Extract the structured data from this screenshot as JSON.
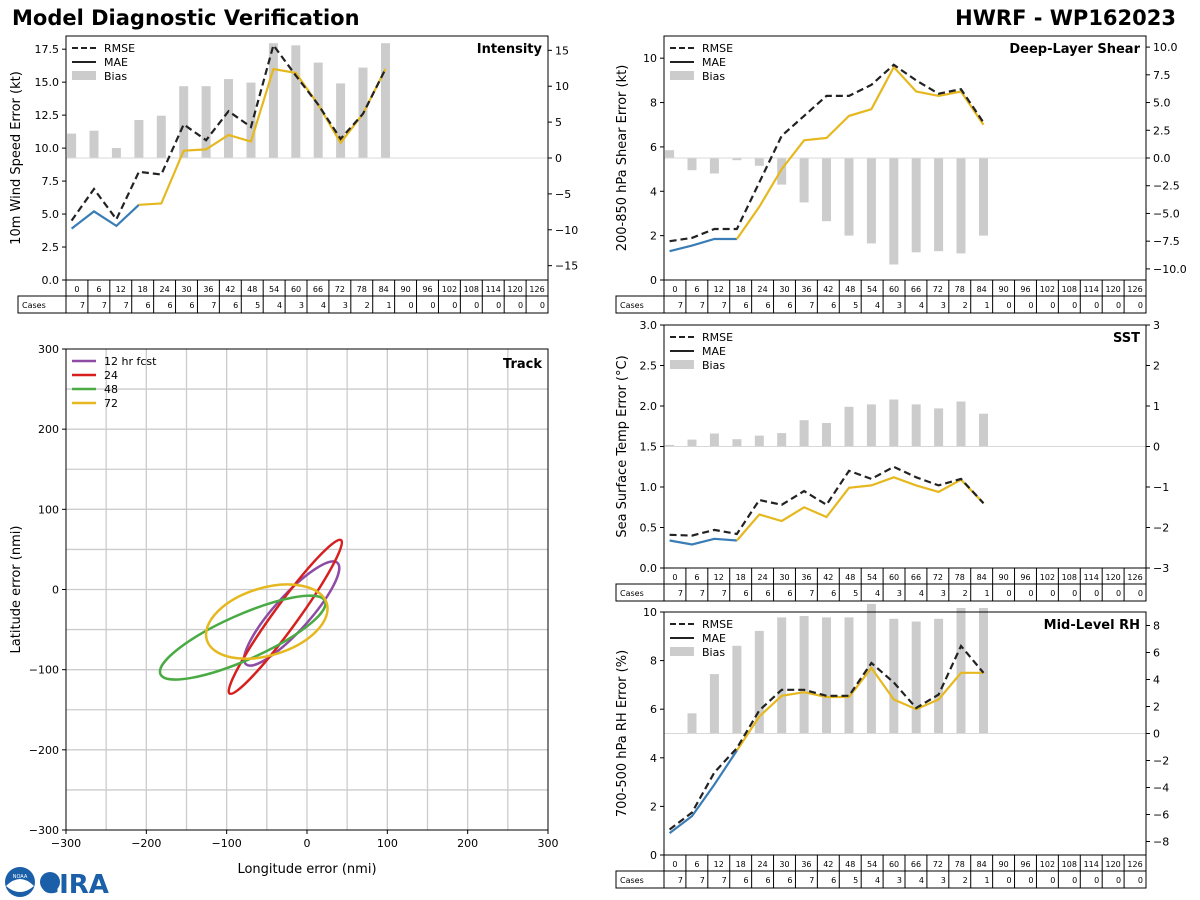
{
  "header": {
    "title": "Model Diagnostic Verification",
    "model": "HWRF - WP162023"
  },
  "logos": {
    "noaa": "NOAA",
    "cira": "CIRA"
  },
  "colors": {
    "rmse": "#222222",
    "mae": "#3a7db6",
    "model_line": "#e6b820",
    "bias_bar": "#cccccc",
    "grid": "#cccccc",
    "track_12": "#8e4ca4",
    "track_24": "#d62020",
    "track_48": "#4aab45",
    "track_72": "#e6b820"
  },
  "forecast_hours": [
    0,
    6,
    12,
    18,
    24,
    30,
    36,
    42,
    48,
    54,
    60,
    66,
    72,
    78,
    84,
    90,
    96,
    102,
    108,
    114,
    120,
    126
  ],
  "cases": [
    7,
    7,
    7,
    6,
    6,
    6,
    7,
    6,
    5,
    4,
    3,
    4,
    3,
    2,
    1,
    0,
    0,
    0,
    0,
    0,
    0,
    0
  ],
  "cases_label": "Cases",
  "legend_labels": {
    "rmse": "RMSE",
    "mae": "MAE",
    "bias": "Bias"
  },
  "chart_data": [
    {
      "id": "intensity",
      "type": "line",
      "title": "Intensity",
      "ylabel": "10m Wind Speed Error (kt)",
      "ylim": [
        0,
        18.5
      ],
      "yticks": [
        0.0,
        2.5,
        5.0,
        7.5,
        10.0,
        12.5,
        15.0,
        17.5
      ],
      "ytick_labels": [
        "0.0",
        "2.5",
        "5.0",
        "7.5",
        "10.0",
        "12.5",
        "15.0",
        "17.5"
      ],
      "y2lim": [
        -17,
        17
      ],
      "y2ticks": [
        -15,
        -10,
        -5,
        0,
        5,
        10,
        15
      ],
      "y2tick_labels": [
        "−15",
        "−10",
        "−5",
        "0",
        "5",
        "10",
        "15"
      ],
      "x": [
        0,
        6,
        12,
        18,
        24,
        30,
        36,
        42,
        48,
        54,
        60,
        66,
        72,
        78,
        84
      ],
      "series": [
        {
          "name": "RMSE",
          "values": [
            4.5,
            6.9,
            4.6,
            8.2,
            8.0,
            11.8,
            10.6,
            12.8,
            11.6,
            17.8,
            15.5,
            13.3,
            10.7,
            12.6,
            16.0
          ]
        },
        {
          "name": "MAE",
          "values": [
            3.9,
            5.2,
            4.1,
            5.7,
            5.8,
            9.8,
            9.9,
            11.0,
            10.5,
            16.0,
            15.7,
            13.3,
            10.4,
            12.6,
            16.0
          ]
        },
        {
          "name": "Bias",
          "values": [
            3.4,
            3.8,
            1.4,
            5.3,
            5.9,
            10.0,
            10.0,
            11.0,
            10.5,
            16.0,
            15.7,
            13.3,
            10.4,
            12.6,
            16.0
          ]
        }
      ]
    },
    {
      "id": "shear",
      "type": "line",
      "title": "Deep-Layer Shear",
      "ylabel": "200-850 hPa Shear Error (kt)",
      "ylim": [
        0,
        11
      ],
      "yticks": [
        0,
        2,
        4,
        6,
        8,
        10
      ],
      "ytick_labels": [
        "0",
        "2",
        "4",
        "6",
        "8",
        "10"
      ],
      "y2lim": [
        -11,
        11
      ],
      "y2ticks": [
        -10,
        -7.5,
        -5,
        -2.5,
        0,
        2.5,
        5,
        7.5,
        10
      ],
      "y2tick_labels": [
        "−10.0",
        "−7.5",
        "−5.0",
        "−2.5",
        "0.0",
        "2.5",
        "5.0",
        "7.5",
        "10.0"
      ],
      "x": [
        0,
        6,
        12,
        18,
        24,
        30,
        36,
        42,
        48,
        54,
        60,
        66,
        72,
        78,
        84
      ],
      "series": [
        {
          "name": "RMSE",
          "values": [
            1.75,
            1.9,
            2.3,
            2.3,
            4.4,
            6.5,
            7.4,
            8.3,
            8.3,
            8.8,
            9.7,
            9.0,
            8.4,
            8.6,
            7.1
          ]
        },
        {
          "name": "MAE",
          "values": [
            1.3,
            1.55,
            1.85,
            1.85,
            3.3,
            5.0,
            6.3,
            6.4,
            7.4,
            7.7,
            9.6,
            8.5,
            8.3,
            8.5,
            7.0
          ]
        },
        {
          "name": "Bias",
          "values": [
            0.7,
            -1.1,
            -1.4,
            -0.2,
            -0.7,
            -2.4,
            -4.0,
            -5.7,
            -7.0,
            -7.7,
            -9.6,
            -8.5,
            -8.4,
            -8.6,
            -7.0
          ]
        }
      ]
    },
    {
      "id": "sst",
      "type": "line",
      "title": "SST",
      "ylabel": "Sea Surface Temp Error (°C)",
      "ylim": [
        0,
        3
      ],
      "yticks": [
        0.0,
        0.5,
        1.0,
        1.5,
        2.0,
        2.5,
        3.0
      ],
      "ytick_labels": [
        "0.0",
        "0.5",
        "1.0",
        "1.5",
        "2.0",
        "2.5",
        "3.0"
      ],
      "y2lim": [
        -3,
        3
      ],
      "y2ticks": [
        -3,
        -2,
        -1,
        0,
        1,
        2,
        3
      ],
      "y2tick_labels": [
        "−3",
        "−2",
        "−1",
        "0",
        "1",
        "2",
        "3"
      ],
      "x": [
        0,
        6,
        12,
        18,
        24,
        30,
        36,
        42,
        48,
        54,
        60,
        66,
        72,
        78,
        84
      ],
      "series": [
        {
          "name": "RMSE",
          "values": [
            0.41,
            0.4,
            0.47,
            0.42,
            0.84,
            0.78,
            0.95,
            0.78,
            1.2,
            1.1,
            1.25,
            1.12,
            1.02,
            1.1,
            0.8
          ]
        },
        {
          "name": "MAE",
          "values": [
            0.34,
            0.29,
            0.36,
            0.34,
            0.66,
            0.58,
            0.75,
            0.63,
            0.99,
            1.02,
            1.12,
            1.02,
            0.94,
            1.09,
            0.8
          ]
        },
        {
          "name": "Bias",
          "values": [
            0.04,
            0.17,
            0.32,
            0.18,
            0.27,
            0.33,
            0.65,
            0.58,
            0.98,
            1.04,
            1.16,
            1.04,
            0.94,
            1.11,
            0.81
          ]
        }
      ]
    },
    {
      "id": "rh",
      "type": "line",
      "title": "Mid-Level RH",
      "ylabel": "700-500 hPa RH Error (%)",
      "ylim": [
        0,
        10
      ],
      "yticks": [
        0,
        2,
        4,
        6,
        8,
        10
      ],
      "ytick_labels": [
        "0",
        "2",
        "4",
        "6",
        "8",
        "10"
      ],
      "y2lim": [
        -9,
        9
      ],
      "y2ticks": [
        -8,
        -6,
        -4,
        -2,
        0,
        2,
        4,
        6,
        8
      ],
      "y2tick_labels": [
        "−8",
        "−6",
        "−4",
        "−2",
        "0",
        "2",
        "4",
        "6",
        "8"
      ],
      "x": [
        0,
        6,
        12,
        18,
        24,
        30,
        36,
        42,
        48,
        54,
        60,
        66,
        72,
        78,
        84
      ],
      "series": [
        {
          "name": "RMSE",
          "values": [
            1.05,
            1.75,
            3.4,
            4.4,
            5.95,
            6.8,
            6.8,
            6.55,
            6.55,
            7.9,
            7.1,
            6.05,
            6.6,
            8.6,
            7.5
          ]
        },
        {
          "name": "MAE",
          "values": [
            0.9,
            1.6,
            2.9,
            4.3,
            5.7,
            6.55,
            6.7,
            6.5,
            6.5,
            7.7,
            6.4,
            6.0,
            6.4,
            7.5,
            7.5
          ]
        },
        {
          "name": "Bias",
          "values": [
            0.0,
            1.5,
            4.4,
            6.5,
            7.6,
            8.6,
            8.7,
            8.6,
            8.6,
            9.6,
            8.5,
            8.3,
            8.5,
            9.3,
            9.3
          ]
        }
      ]
    },
    {
      "id": "track",
      "type": "scatter",
      "title": "Track",
      "xlabel": "Longitude error (nmi)",
      "ylabel": "Latitude error (nmi)",
      "xlim": [
        -300,
        300
      ],
      "ylim": [
        -300,
        300
      ],
      "xticks": [
        -300,
        -200,
        -100,
        0,
        100,
        200,
        300
      ],
      "xtick_labels": [
        "−300",
        "−200",
        "−100",
        "0",
        "100",
        "200",
        "300"
      ],
      "yticks": [
        -300,
        -200,
        -100,
        0,
        100,
        200,
        300
      ],
      "ytick_labels": [
        "−300",
        "−200",
        "−100",
        "0",
        "100",
        "200",
        "300"
      ],
      "grid_step": 50,
      "ellipses": [
        {
          "name": "12 hr fcst",
          "key": "track_12",
          "cx": -19,
          "cy": -30,
          "rx": 85,
          "ry": 22,
          "angle_deg": 48
        },
        {
          "name": "24",
          "key": "track_24",
          "cx": -27,
          "cy": -34,
          "rx": 118,
          "ry": 15,
          "angle_deg": 54
        },
        {
          "name": "48",
          "key": "track_48",
          "cx": -80,
          "cy": -60,
          "rx": 112,
          "ry": 28,
          "angle_deg": 24
        },
        {
          "name": "72",
          "key": "track_72",
          "cx": -50,
          "cy": -40,
          "rx": 78,
          "ry": 42,
          "angle_deg": 17
        }
      ]
    }
  ]
}
